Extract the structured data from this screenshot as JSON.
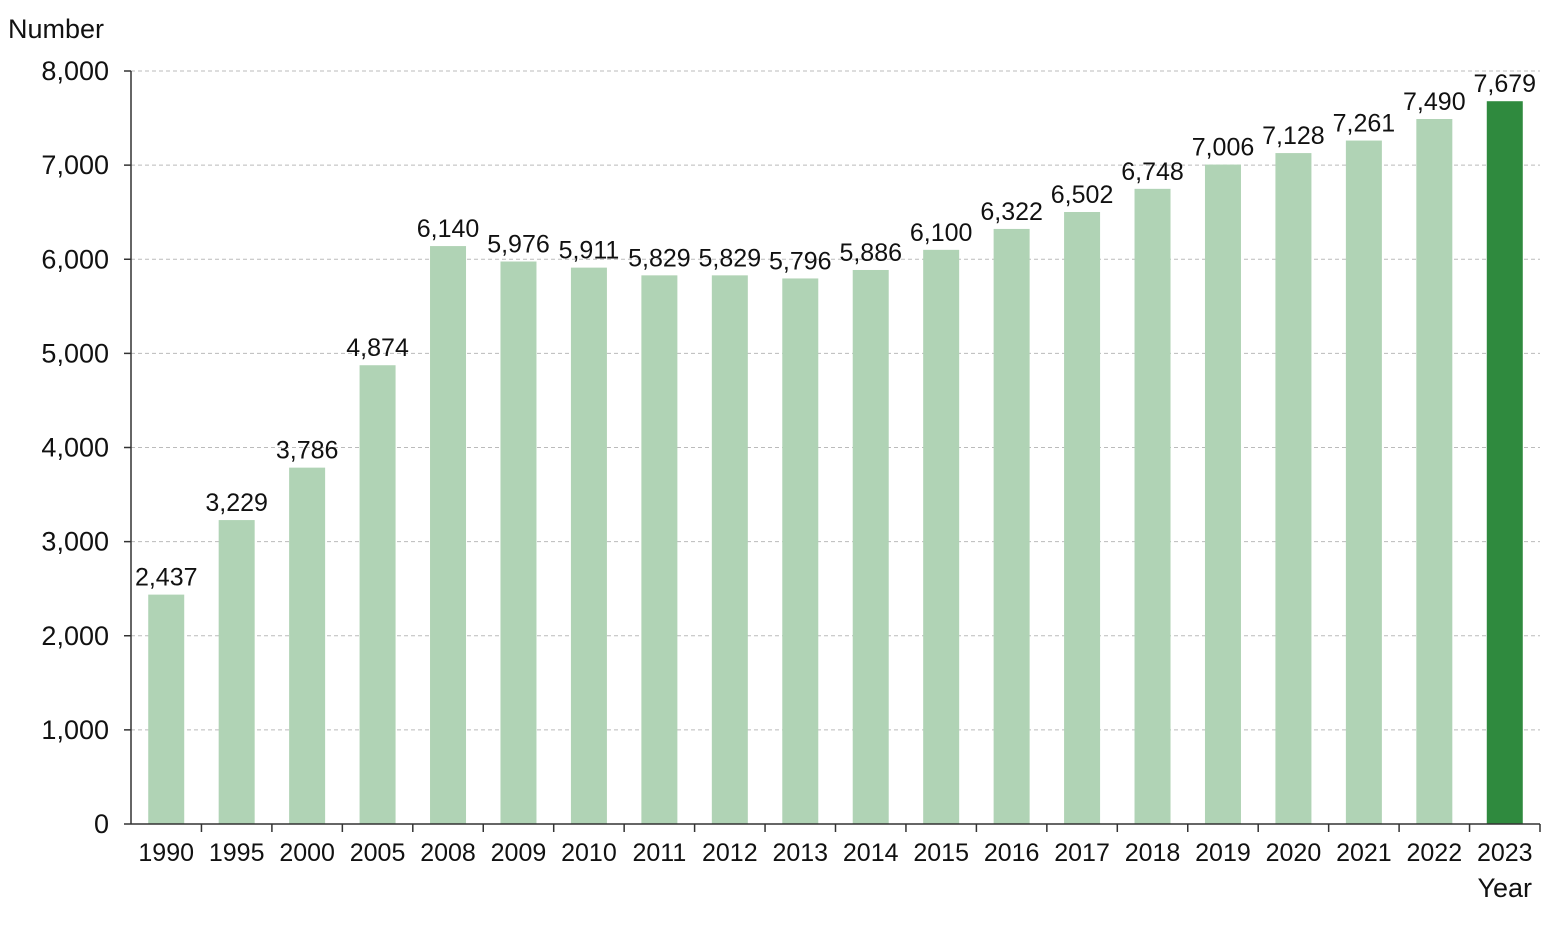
{
  "chart_data": {
    "type": "bar",
    "title": "",
    "ylabel": "Number",
    "xlabel": "Year",
    "ylim": [
      0,
      8000
    ],
    "yticks": [
      0,
      1000,
      2000,
      3000,
      4000,
      5000,
      6000,
      7000,
      8000
    ],
    "ytick_labels": [
      "0",
      "1,000",
      "2,000",
      "3,000",
      "4,000",
      "5,000",
      "6,000",
      "7,000",
      "8,000"
    ],
    "grid": "horizontal dashed",
    "categories": [
      "1990",
      "1995",
      "2000",
      "2005",
      "2008",
      "2009",
      "2010",
      "2011",
      "2012",
      "2013",
      "2014",
      "2015",
      "2016",
      "2017",
      "2018",
      "2019",
      "2020",
      "2021",
      "2022",
      "2023"
    ],
    "values": [
      2437,
      3229,
      3786,
      4874,
      6140,
      5976,
      5911,
      5829,
      5829,
      5796,
      5886,
      6100,
      6322,
      6502,
      6748,
      7006,
      7128,
      7261,
      7490,
      7679
    ],
    "value_labels": [
      "2,437",
      "3,229",
      "3,786",
      "4,874",
      "6,140",
      "5,976",
      "5,911",
      "5,829",
      "5,829",
      "5,796",
      "5,886",
      "6,100",
      "6,322",
      "6,502",
      "6,748",
      "7,006",
      "7,128",
      "7,261",
      "7,490",
      "7,679"
    ],
    "highlight_category": "2023",
    "colors": {
      "bar": "#b0d3b5",
      "bar_highlight": "#2f8a3e",
      "grid": "#bbbbbb",
      "axis": "#333333"
    }
  }
}
